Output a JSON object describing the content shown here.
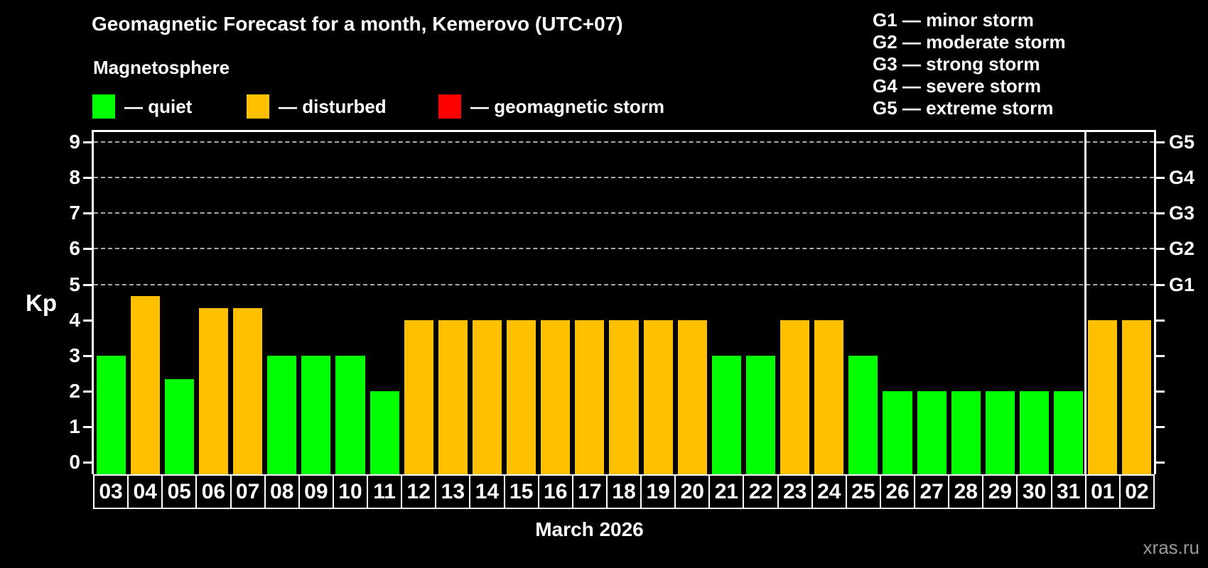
{
  "header": {
    "title": "Geomagnetic Forecast for a month, Kemerovo (UTC+07)",
    "subtitle": "Magnetosphere"
  },
  "legend": {
    "items": [
      {
        "key": "quiet",
        "label": "— quiet",
        "color": "#00ff00"
      },
      {
        "key": "disturbed",
        "label": "— disturbed",
        "color": "#ffc000"
      },
      {
        "key": "storm",
        "label": "— geomagnetic storm",
        "color": "#ff0000"
      }
    ]
  },
  "g_scale_legend": {
    "items": [
      "G1 — minor storm",
      "G2 — moderate storm",
      "G3 — strong storm",
      "G4 — severe storm",
      "G5 — extreme storm"
    ]
  },
  "axes": {
    "y_label": "Kp",
    "y_ticks": [
      0,
      1,
      2,
      3,
      4,
      5,
      6,
      7,
      8,
      9
    ],
    "right_labels": [
      {
        "label": "G1",
        "kp": 5
      },
      {
        "label": "G2",
        "kp": 6
      },
      {
        "label": "G3",
        "kp": 7
      },
      {
        "label": "G4",
        "kp": 8
      },
      {
        "label": "G5",
        "kp": 9
      }
    ]
  },
  "footer": {
    "x_axis_title": "March 2026",
    "watermark": "xras.ru"
  },
  "chart_data": {
    "type": "bar",
    "title": "Geomagnetic Forecast for a month, Kemerovo (UTC+07)",
    "ylabel": "Kp",
    "ylim": [
      0,
      9
    ],
    "gridlines_at": [
      5,
      6,
      7,
      8,
      9
    ],
    "legend_position": "top-left",
    "month_label": "March 2026",
    "month_separator_after": "31",
    "status_colors": {
      "quiet": "#00ff00",
      "disturbed": "#ffc000",
      "storm": "#ff0000"
    },
    "days": [
      {
        "day": "03",
        "kp": 3.0,
        "status": "quiet"
      },
      {
        "day": "04",
        "kp": 4.67,
        "status": "disturbed"
      },
      {
        "day": "05",
        "kp": 2.33,
        "status": "quiet"
      },
      {
        "day": "06",
        "kp": 4.33,
        "status": "disturbed"
      },
      {
        "day": "07",
        "kp": 4.33,
        "status": "disturbed"
      },
      {
        "day": "08",
        "kp": 3.0,
        "status": "quiet"
      },
      {
        "day": "09",
        "kp": 3.0,
        "status": "quiet"
      },
      {
        "day": "10",
        "kp": 3.0,
        "status": "quiet"
      },
      {
        "day": "11",
        "kp": 2.0,
        "status": "quiet"
      },
      {
        "day": "12",
        "kp": 4.0,
        "status": "disturbed"
      },
      {
        "day": "13",
        "kp": 4.0,
        "status": "disturbed"
      },
      {
        "day": "14",
        "kp": 4.0,
        "status": "disturbed"
      },
      {
        "day": "15",
        "kp": 4.0,
        "status": "disturbed"
      },
      {
        "day": "16",
        "kp": 4.0,
        "status": "disturbed"
      },
      {
        "day": "17",
        "kp": 4.0,
        "status": "disturbed"
      },
      {
        "day": "18",
        "kp": 4.0,
        "status": "disturbed"
      },
      {
        "day": "19",
        "kp": 4.0,
        "status": "disturbed"
      },
      {
        "day": "20",
        "kp": 4.0,
        "status": "disturbed"
      },
      {
        "day": "21",
        "kp": 3.0,
        "status": "quiet"
      },
      {
        "day": "22",
        "kp": 3.0,
        "status": "quiet"
      },
      {
        "day": "23",
        "kp": 4.0,
        "status": "disturbed"
      },
      {
        "day": "24",
        "kp": 4.0,
        "status": "disturbed"
      },
      {
        "day": "25",
        "kp": 3.0,
        "status": "quiet"
      },
      {
        "day": "26",
        "kp": 2.0,
        "status": "quiet"
      },
      {
        "day": "27",
        "kp": 2.0,
        "status": "quiet"
      },
      {
        "day": "28",
        "kp": 2.0,
        "status": "quiet"
      },
      {
        "day": "29",
        "kp": 2.0,
        "status": "quiet"
      },
      {
        "day": "30",
        "kp": 2.0,
        "status": "quiet"
      },
      {
        "day": "31",
        "kp": 2.0,
        "status": "quiet"
      },
      {
        "day": "01",
        "kp": 4.0,
        "status": "disturbed"
      },
      {
        "day": "02",
        "kp": 4.0,
        "status": "disturbed"
      }
    ]
  }
}
